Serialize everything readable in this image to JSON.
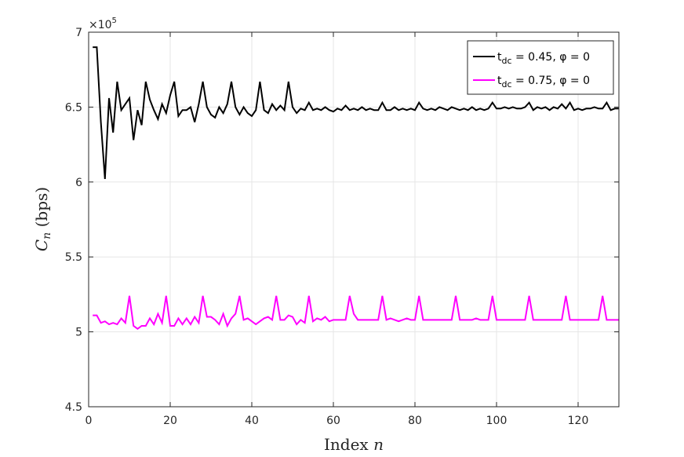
{
  "chart_data": {
    "type": "line",
    "title": "",
    "xlabel": "Index n",
    "ylabel": "C_n (bps)",
    "ylabel_parts": {
      "symbol": "C",
      "subscript": "n",
      "unit": "(bps)"
    },
    "xlabel_parts": {
      "text": "Index",
      "var": "n"
    },
    "xlim": [
      0,
      130
    ],
    "ylim": [
      450000,
      700000
    ],
    "xticks": [
      0,
      20,
      40,
      60,
      80,
      100,
      120
    ],
    "yticks": [
      450000,
      500000,
      550000,
      600000,
      650000,
      700000
    ],
    "ytick_labels": [
      "4.5",
      "5",
      "5.5",
      "6",
      "6.5",
      "7"
    ],
    "y_multiplier_label": "×10",
    "y_multiplier_exponent": "5",
    "grid": true,
    "legend_position": "top-right",
    "series": [
      {
        "name": "t_dc = 0.45, φ = 0",
        "legend_parts": {
          "base": "t",
          "sub": "dc",
          "rest": " = 0.45, φ = 0"
        },
        "color": "#000000",
        "x": [
          1,
          2,
          3,
          4,
          5,
          6,
          7,
          8,
          9,
          10,
          11,
          12,
          13,
          14,
          15,
          16,
          17,
          18,
          19,
          20,
          21,
          22,
          23,
          24,
          25,
          26,
          27,
          28,
          29,
          30,
          31,
          32,
          33,
          34,
          35,
          36,
          37,
          38,
          39,
          40,
          41,
          42,
          43,
          44,
          45,
          46,
          47,
          48,
          49,
          50,
          51,
          52,
          53,
          54,
          55,
          56,
          57,
          58,
          59,
          60,
          61,
          62,
          63,
          64,
          65,
          66,
          67,
          68,
          69,
          70,
          71,
          72,
          73,
          74,
          75,
          76,
          77,
          78,
          79,
          80,
          81,
          82,
          83,
          84,
          85,
          86,
          87,
          88,
          89,
          90,
          91,
          92,
          93,
          94,
          95,
          96,
          97,
          98,
          99,
          100,
          101,
          102,
          103,
          104,
          105,
          106,
          107,
          108,
          109,
          110,
          111,
          112,
          113,
          114,
          115,
          116,
          117,
          118,
          119,
          120,
          121,
          122,
          123,
          124,
          125,
          126,
          127,
          128,
          129,
          130
        ],
        "values": [
          690000,
          690000,
          640000,
          602000,
          656000,
          633000,
          667000,
          648000,
          652000,
          656000,
          628000,
          648000,
          638000,
          667000,
          655000,
          648000,
          642000,
          652000,
          646000,
          658000,
          667000,
          644000,
          648000,
          648000,
          650000,
          640000,
          652000,
          667000,
          650000,
          645000,
          643000,
          650000,
          646000,
          652000,
          667000,
          650000,
          645000,
          650000,
          646000,
          644000,
          648000,
          667000,
          648000,
          646000,
          652000,
          648000,
          651000,
          648000,
          667000,
          650000,
          646000,
          649000,
          648000,
          653000,
          648000,
          649000,
          648000,
          650000,
          648000,
          647000,
          649000,
          648000,
          651000,
          648000,
          649000,
          648000,
          650000,
          648000,
          649000,
          648000,
          648000,
          653000,
          648000,
          648000,
          650000,
          648000,
          649000,
          648000,
          649000,
          648000,
          653000,
          649000,
          648000,
          649000,
          648000,
          650000,
          649000,
          648000,
          650000,
          649000,
          648000,
          649000,
          648000,
          650000,
          648000,
          649000,
          648000,
          649000,
          653000,
          649000,
          649000,
          650000,
          649000,
          650000,
          649000,
          649000,
          650000,
          653000,
          648000,
          650000,
          649000,
          650000,
          648000,
          650000,
          649000,
          652000,
          649000,
          653000,
          648000,
          649000,
          648000,
          649000,
          649000,
          650000,
          649000,
          649000,
          653000,
          648000,
          649000,
          649000
        ]
      },
      {
        "name": "t_dc = 0.75, φ = 0",
        "legend_parts": {
          "base": "t",
          "sub": "dc",
          "rest": " = 0.75, φ = 0"
        },
        "color": "#ff00ff",
        "x": [
          1,
          2,
          3,
          4,
          5,
          6,
          7,
          8,
          9,
          10,
          11,
          12,
          13,
          14,
          15,
          16,
          17,
          18,
          19,
          20,
          21,
          22,
          23,
          24,
          25,
          26,
          27,
          28,
          29,
          30,
          31,
          32,
          33,
          34,
          35,
          36,
          37,
          38,
          39,
          40,
          41,
          42,
          43,
          44,
          45,
          46,
          47,
          48,
          49,
          50,
          51,
          52,
          53,
          54,
          55,
          56,
          57,
          58,
          59,
          60,
          61,
          62,
          63,
          64,
          65,
          66,
          67,
          68,
          69,
          70,
          71,
          72,
          73,
          74,
          75,
          76,
          77,
          78,
          79,
          80,
          81,
          82,
          83,
          84,
          85,
          86,
          87,
          88,
          89,
          90,
          91,
          92,
          93,
          94,
          95,
          96,
          97,
          98,
          99,
          100,
          101,
          102,
          103,
          104,
          105,
          106,
          107,
          108,
          109,
          110,
          111,
          112,
          113,
          114,
          115,
          116,
          117,
          118,
          119,
          120,
          121,
          122,
          123,
          124,
          125,
          126,
          127,
          128,
          129,
          130
        ],
        "values": [
          511000,
          511000,
          506000,
          507000,
          505000,
          506000,
          505000,
          509000,
          506000,
          524000,
          504000,
          502000,
          504000,
          504000,
          509000,
          505000,
          512000,
          506000,
          524000,
          504000,
          504000,
          509000,
          505000,
          509000,
          505000,
          510000,
          506000,
          524000,
          510000,
          510000,
          508000,
          505000,
          512000,
          504000,
          509000,
          512000,
          524000,
          508000,
          509000,
          507000,
          505000,
          507000,
          509000,
          510000,
          508000,
          524000,
          508000,
          508000,
          511000,
          510000,
          505000,
          508000,
          506000,
          524000,
          507000,
          509000,
          508000,
          510000,
          507000,
          508000,
          508000,
          508000,
          508000,
          524000,
          512000,
          508000,
          508000,
          508000,
          508000,
          508000,
          508000,
          524000,
          508000,
          509000,
          508000,
          507000,
          508000,
          509000,
          508000,
          508000,
          524000,
          508000,
          508000,
          508000,
          508000,
          508000,
          508000,
          508000,
          508000,
          524000,
          508000,
          508000,
          508000,
          508000,
          509000,
          508000,
          508000,
          508000,
          524000,
          508000,
          508000,
          508000,
          508000,
          508000,
          508000,
          508000,
          508000,
          524000,
          508000,
          508000,
          508000,
          508000,
          508000,
          508000,
          508000,
          508000,
          524000,
          508000,
          508000,
          508000,
          508000,
          508000,
          508000,
          508000,
          508000,
          524000,
          508000,
          508000,
          508000,
          508000
        ]
      }
    ]
  }
}
